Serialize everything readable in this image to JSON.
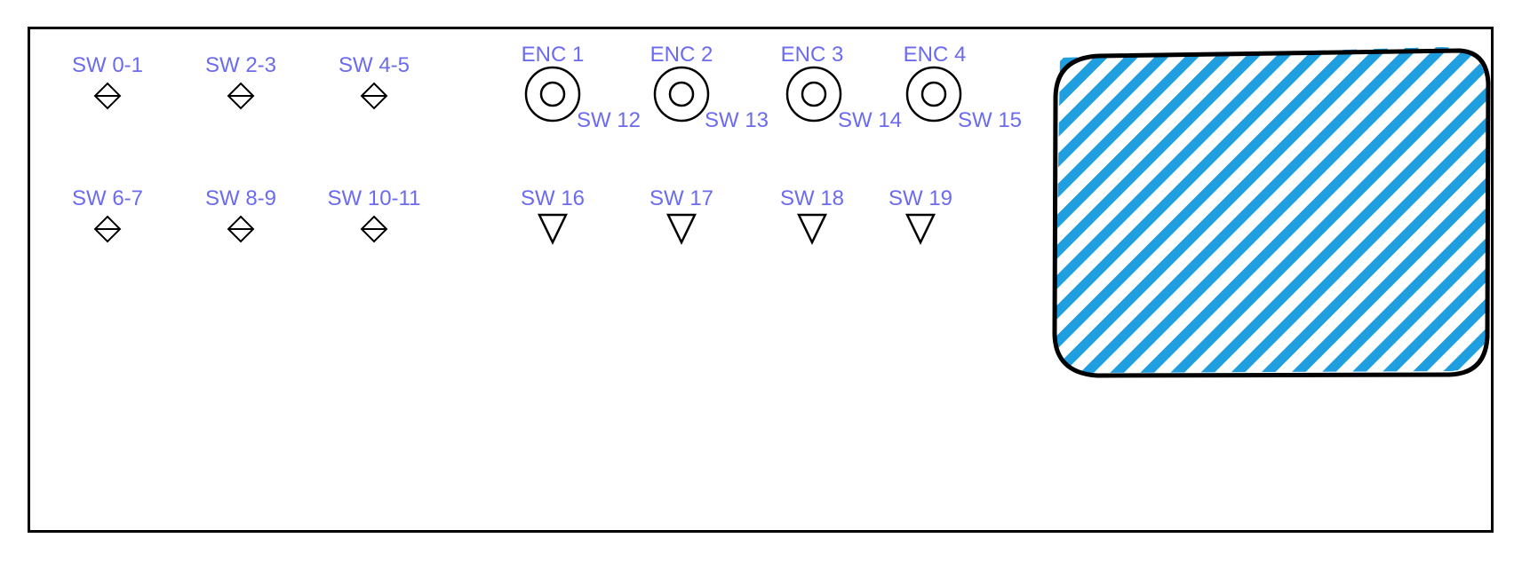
{
  "colors": {
    "label": "#6b6bf2",
    "stroke": "#000000",
    "display_fill": "#1f9ee0"
  },
  "toggles_row1": [
    {
      "label": "SW 0-1",
      "icon": "toggle-switch-icon"
    },
    {
      "label": "SW 2-3",
      "icon": "toggle-switch-icon"
    },
    {
      "label": "SW 4-5",
      "icon": "toggle-switch-icon"
    }
  ],
  "toggles_row2": [
    {
      "label": "SW 6-7",
      "icon": "toggle-switch-icon"
    },
    {
      "label": "SW 8-9",
      "icon": "toggle-switch-icon"
    },
    {
      "label": "SW 10-11",
      "icon": "toggle-switch-icon"
    }
  ],
  "encoders": [
    {
      "label": "ENC 1",
      "switch_label": "SW 12",
      "icon": "rotary-encoder-icon"
    },
    {
      "label": "ENC 2",
      "switch_label": "SW 13",
      "icon": "rotary-encoder-icon"
    },
    {
      "label": "ENC 3",
      "switch_label": "SW 14",
      "icon": "rotary-encoder-icon"
    },
    {
      "label": "ENC 4",
      "switch_label": "SW 15",
      "icon": "rotary-encoder-icon"
    }
  ],
  "pushbuttons": [
    {
      "label": "SW 16",
      "icon": "push-button-triangle-icon"
    },
    {
      "label": "SW 17",
      "icon": "push-button-triangle-icon"
    },
    {
      "label": "SW 18",
      "icon": "push-button-triangle-icon"
    },
    {
      "label": "SW 19",
      "icon": "push-button-triangle-icon"
    }
  ],
  "display": {
    "icon": "display-screen-hatched-icon"
  }
}
